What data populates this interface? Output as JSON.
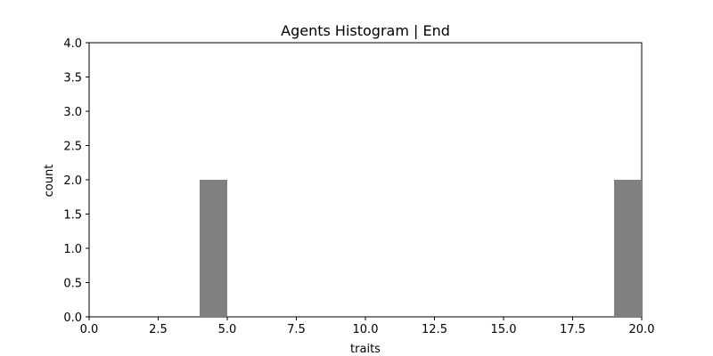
{
  "chart_data": {
    "type": "bar",
    "title": "Agents Histogram | End",
    "xlabel": "traits",
    "ylabel": "count",
    "xlim": [
      0,
      20
    ],
    "ylim": [
      0,
      4
    ],
    "grid": false,
    "bar_color": "#808080",
    "bins": [
      {
        "x0": 4,
        "x1": 5,
        "count": 2
      },
      {
        "x0": 19,
        "x1": 20,
        "count": 2
      }
    ],
    "x_ticks": [
      {
        "value": 0,
        "label": "0.0"
      },
      {
        "value": 2.5,
        "label": "2.5"
      },
      {
        "value": 5,
        "label": "5.0"
      },
      {
        "value": 7.5,
        "label": "7.5"
      },
      {
        "value": 10,
        "label": "10.0"
      },
      {
        "value": 12.5,
        "label": "12.5"
      },
      {
        "value": 15,
        "label": "15.0"
      },
      {
        "value": 17.5,
        "label": "17.5"
      },
      {
        "value": 20,
        "label": "20.0"
      }
    ],
    "y_ticks": [
      {
        "value": 0,
        "label": "0.0"
      },
      {
        "value": 0.5,
        "label": "0.5"
      },
      {
        "value": 1,
        "label": "1.0"
      },
      {
        "value": 1.5,
        "label": "1.5"
      },
      {
        "value": 2,
        "label": "2.0"
      },
      {
        "value": 2.5,
        "label": "2.5"
      },
      {
        "value": 3,
        "label": "3.0"
      },
      {
        "value": 3.5,
        "label": "3.5"
      },
      {
        "value": 4,
        "label": "4.0"
      }
    ]
  }
}
